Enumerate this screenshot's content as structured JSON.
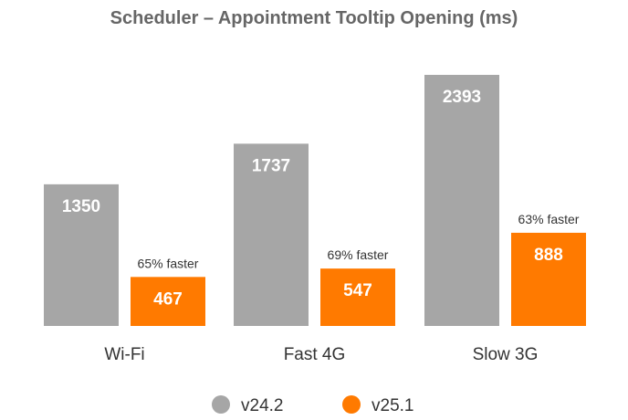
{
  "chart_data": {
    "type": "bar",
    "title": "Scheduler – Appointment Tooltip Opening (ms)",
    "categories": [
      "Wi-Fi",
      "Fast 4G",
      "Slow 3G"
    ],
    "series": [
      {
        "name": "v24.2",
        "values": [
          1350,
          1737,
          2393
        ],
        "color": "#a6a6a6"
      },
      {
        "name": "v25.1",
        "values": [
          467,
          547,
          888
        ],
        "color": "#ff7a00"
      }
    ],
    "annotations": [
      "65% faster",
      "69% faster",
      "63% faster"
    ],
    "legend_position": "bottom",
    "grid": false
  }
}
